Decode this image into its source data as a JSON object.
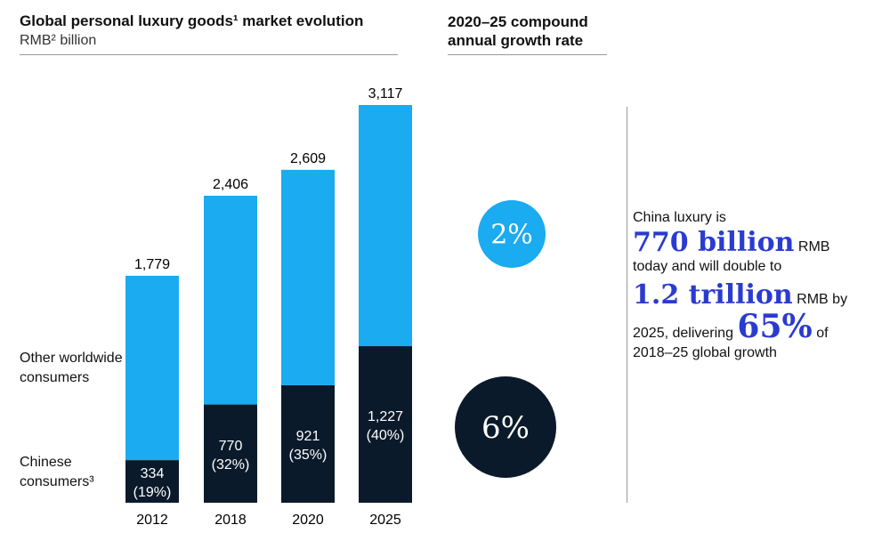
{
  "chart_data": {
    "type": "stacked_bar",
    "title": "Global personal luxury goods¹ market evolution",
    "subtitle": "RMB² billion",
    "cagr_title": "2020–25 compound annual growth rate",
    "categories": [
      "2012",
      "2018",
      "2020",
      "2025"
    ],
    "series": [
      {
        "name": "Chinese consumers³",
        "color": "#0b1a2b",
        "values": [
          334,
          770,
          921,
          1227
        ],
        "value_labels": [
          "334",
          "770",
          "921",
          "1,227"
        ],
        "shares": [
          19,
          32,
          35,
          40
        ],
        "share_labels": [
          "(19%)",
          "(32%)",
          "(35%)",
          "(40%)"
        ],
        "cagr": 6,
        "cagr_label": "6%"
      },
      {
        "name": "Other worldwide consumers",
        "color": "#1aabf0",
        "values": [
          1445,
          1636,
          1688,
          1890
        ],
        "cagr": 2,
        "cagr_label": "2%"
      }
    ],
    "totals": [
      1779,
      2406,
      2609,
      3117
    ],
    "total_labels": [
      "1,779",
      "2,406",
      "2,609",
      "3,117"
    ],
    "ylim": [
      0,
      3117
    ]
  },
  "callout": {
    "intro": "China luxury is",
    "today": "770 billion",
    "today_unit": "RMB",
    "mid": "today and will double to",
    "future": "1.2 trillion",
    "future_unit": "RMB by",
    "year": "2025, delivering",
    "share": "65%",
    "share_unit": "of",
    "tail": "2018–25 global growth"
  }
}
